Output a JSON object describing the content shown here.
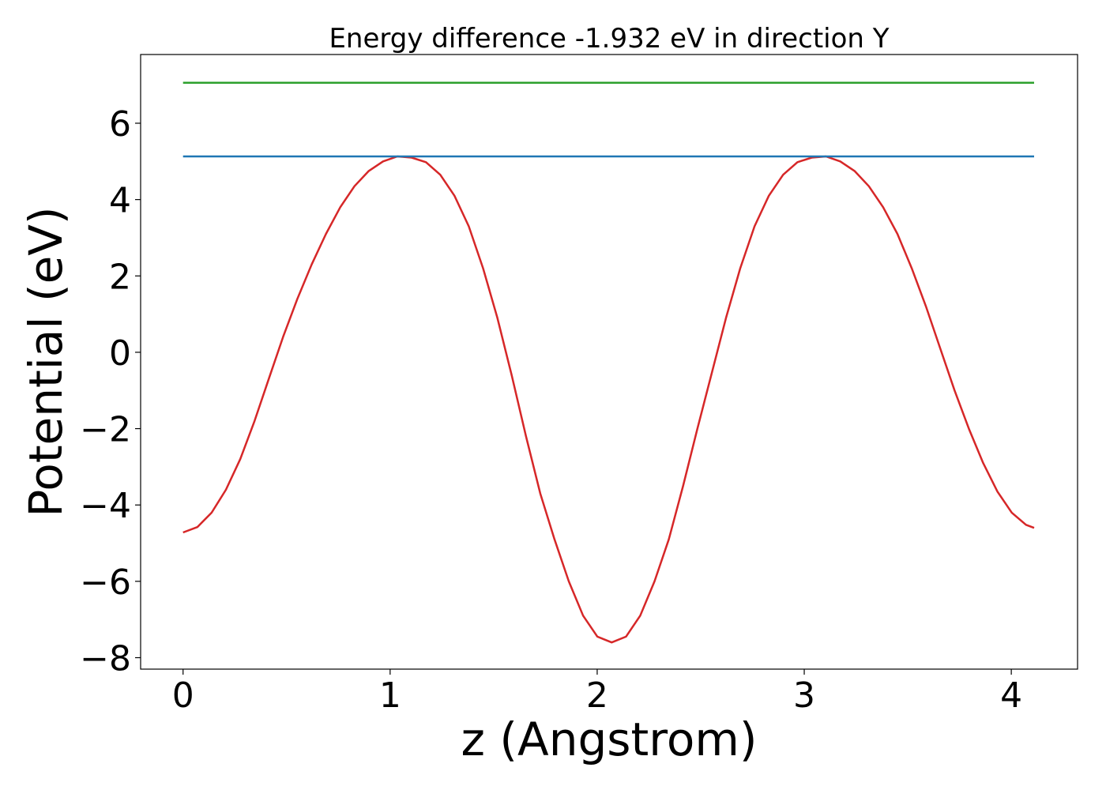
{
  "chart_data": {
    "type": "line",
    "title": "Energy difference -1.932 eV in direction Y",
    "xlabel": "z (Angstrom)",
    "ylabel": "Potential (eV)",
    "xlim": [
      -0.205,
      4.32
    ],
    "ylim": [
      -8.3,
      7.8
    ],
    "x_ticks": [
      0,
      1,
      2,
      3,
      4
    ],
    "x_tick_labels": [
      "0",
      "1",
      "2",
      "3",
      "4"
    ],
    "y_ticks": [
      -8,
      -6,
      -4,
      -2,
      0,
      2,
      4,
      6
    ],
    "y_tick_labels": [
      "−8",
      "−6",
      "−4",
      "−2",
      "0",
      "2",
      "4",
      "6"
    ],
    "grid": false,
    "legend": "none",
    "series": [
      {
        "color": "#d62728",
        "x": [
          0,
          0.069,
          0.138,
          0.207,
          0.276,
          0.345,
          0.414,
          0.483,
          0.552,
          0.621,
          0.69,
          0.759,
          0.828,
          0.897,
          0.966,
          1.035,
          1.104,
          1.173,
          1.242,
          1.311,
          1.38,
          1.449,
          1.518,
          1.587,
          1.656,
          1.725,
          1.794,
          1.863,
          1.932,
          2.001,
          2.07,
          2.139,
          2.208,
          2.277,
          2.346,
          2.415,
          2.484,
          2.553,
          2.622,
          2.691,
          2.76,
          2.829,
          2.898,
          2.967,
          3.036,
          3.105,
          3.174,
          3.243,
          3.312,
          3.381,
          3.45,
          3.519,
          3.588,
          3.657,
          3.726,
          3.795,
          3.864,
          3.933,
          4.002,
          4.071,
          4.11
        ],
        "y": [
          -4.72,
          -4.58,
          -4.2,
          -3.6,
          -2.8,
          -1.8,
          -0.7,
          0.4,
          1.4,
          2.3,
          3.1,
          3.8,
          4.35,
          4.75,
          5.0,
          5.13,
          5.1,
          4.98,
          4.65,
          4.1,
          3.3,
          2.2,
          0.9,
          -0.6,
          -2.2,
          -3.7,
          -4.9,
          -6.0,
          -6.9,
          -7.45,
          -7.6,
          -7.45,
          -6.9,
          -6.0,
          -4.9,
          -3.5,
          -2.0,
          -0.55,
          0.9,
          2.2,
          3.3,
          4.1,
          4.65,
          4.98,
          5.1,
          5.13,
          5.0,
          4.75,
          4.35,
          3.8,
          3.1,
          2.2,
          1.2,
          0.1,
          -1.0,
          -2.0,
          -2.9,
          -3.65,
          -4.2,
          -4.52,
          -4.6
        ]
      },
      {
        "color": "#1f77b4",
        "x": [
          0,
          4.11
        ],
        "y": [
          5.13,
          5.13
        ]
      },
      {
        "color": "#2ca02c",
        "x": [
          0,
          4.11
        ],
        "y": [
          7.06,
          7.06
        ]
      }
    ]
  }
}
